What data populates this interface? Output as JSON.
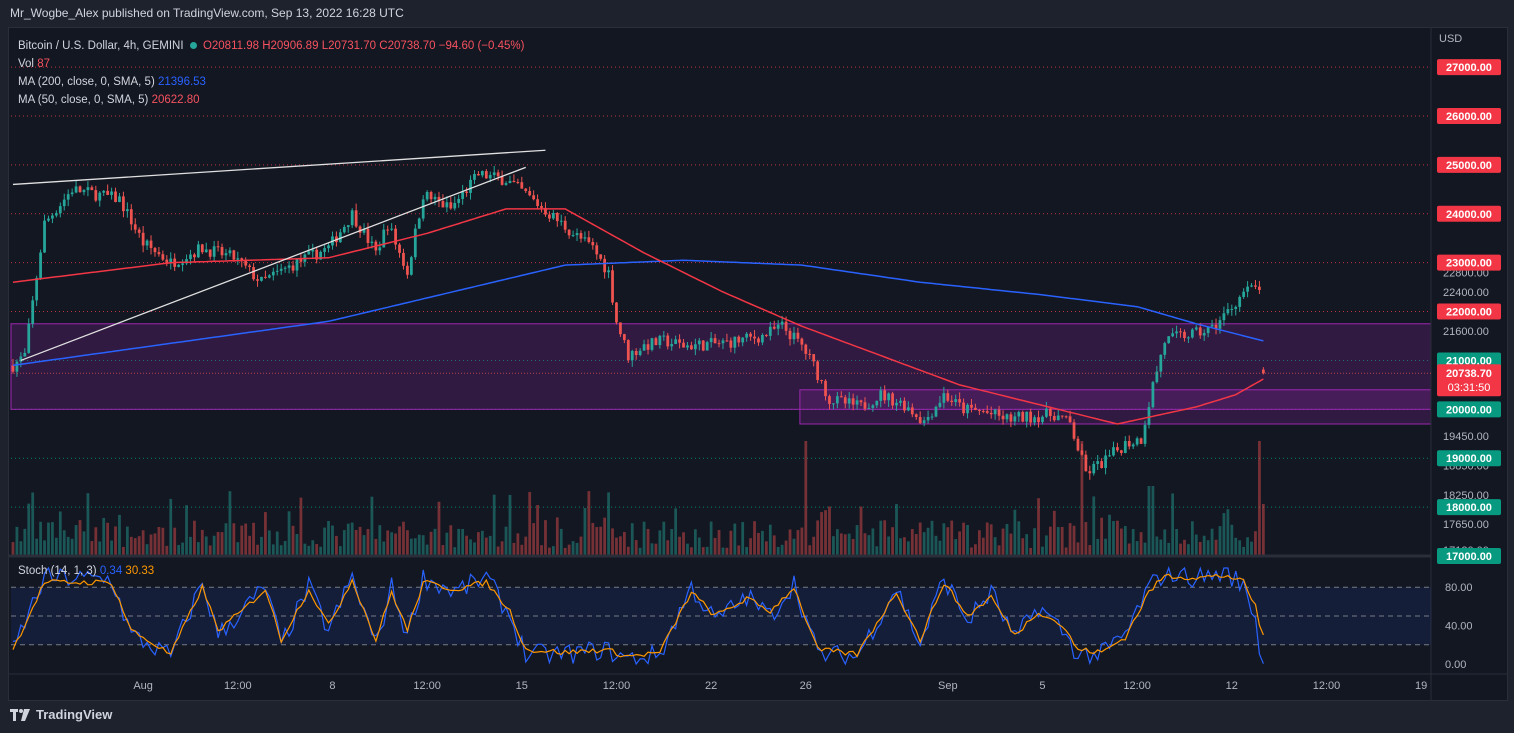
{
  "publisher": "Mr_Wogbe_Alex published on TradingView.com, Sep 13, 2022 16:28 UTC",
  "legend": {
    "symbol": "Bitcoin / U.S. Dollar, 4h, GEMINI",
    "open": "O20811.98",
    "high": "H20906.89",
    "low": "L20731.70",
    "close": "C20738.70",
    "change": "−94.60 (−0.45%)",
    "vol_label": "Vol",
    "vol_value": "87",
    "ma200_label": "MA (200, close, 0, SMA, 5)",
    "ma200_value": "21396.53",
    "ma50_label": "MA (50, close, 0, SMA, 5)",
    "ma50_value": "20622.80"
  },
  "stoch_legend": {
    "label": "Stoch (14, 1, 3)",
    "k_value": "0.34",
    "d_value": "30.33"
  },
  "footer": {
    "brand": "TradingView"
  },
  "colors": {
    "up": "#26a69a",
    "down": "#ef5350",
    "ma200": "#2962ff",
    "ma50": "#f23645",
    "zone": "#9c27b0",
    "stoch_k": "#2962ff",
    "stoch_d": "#ff9800",
    "trendline": "#e0e0e0"
  },
  "chart_data": {
    "type": "candlestick",
    "currency_label": "USD",
    "y_range": [
      17000,
      27800
    ],
    "price_ticks": [
      "22800.00",
      "22400.00",
      "21600.00",
      "19450.00",
      "18850.00",
      "18250.00",
      "17650.00",
      "17120.00"
    ],
    "price_levels": [
      {
        "value": 27000,
        "label": "27000.00",
        "color": "#f23645"
      },
      {
        "value": 26000,
        "label": "26000.00",
        "color": "#f23645"
      },
      {
        "value": 25000,
        "label": "25000.00",
        "color": "#f23645"
      },
      {
        "value": 24000,
        "label": "24000.00",
        "color": "#f23645"
      },
      {
        "value": 23000,
        "label": "23000.00",
        "color": "#f23645"
      },
      {
        "value": 22000,
        "label": "22000.00",
        "color": "#f23645"
      },
      {
        "value": 21000,
        "label": "21000.00",
        "color": "#089981"
      },
      {
        "value": 20000,
        "label": "20000.00",
        "color": "#089981"
      },
      {
        "value": 19000,
        "label": "19000.00",
        "color": "#089981"
      },
      {
        "value": 18000,
        "label": "18000.00",
        "color": "#089981"
      },
      {
        "value": 17000,
        "label": "17000.00",
        "color": "#089981"
      }
    ],
    "last_price": {
      "value": 20738.7,
      "label": "20738.70",
      "countdown": "03:31:50"
    },
    "x_labels": [
      "Aug",
      "12:00",
      "8",
      "12:00",
      "15",
      "12:00",
      "22",
      "26",
      "Sep",
      "5",
      "12:00",
      "12",
      "12:00",
      "19"
    ],
    "x_label_index": [
      33,
      57,
      81,
      105,
      129,
      153,
      177,
      201,
      237,
      261,
      285,
      309,
      333,
      357
    ],
    "keypoints": [
      [
        0,
        20900
      ],
      [
        3,
        21100
      ],
      [
        8,
        23800
      ],
      [
        15,
        24500
      ],
      [
        27,
        24300
      ],
      [
        33,
        23400
      ],
      [
        40,
        23000
      ],
      [
        48,
        23300
      ],
      [
        56,
        23100
      ],
      [
        63,
        22600
      ],
      [
        72,
        23000
      ],
      [
        80,
        23300
      ],
      [
        86,
        24000
      ],
      [
        92,
        23200
      ],
      [
        95,
        23800
      ],
      [
        100,
        22800
      ],
      [
        104,
        24400
      ],
      [
        111,
        24100
      ],
      [
        118,
        24800
      ],
      [
        125,
        24700
      ],
      [
        130,
        24400
      ],
      [
        136,
        24000
      ],
      [
        142,
        23600
      ],
      [
        147,
        23300
      ],
      [
        151,
        22800
      ],
      [
        153,
        21800
      ],
      [
        156,
        21100
      ],
      [
        160,
        21300
      ],
      [
        165,
        21400
      ],
      [
        170,
        21300
      ],
      [
        180,
        21350
      ],
      [
        190,
        21500
      ],
      [
        195,
        21700
      ],
      [
        200,
        21300
      ],
      [
        203,
        20900
      ],
      [
        207,
        20200
      ],
      [
        215,
        20050
      ],
      [
        220,
        20300
      ],
      [
        226,
        20100
      ],
      [
        231,
        19750
      ],
      [
        236,
        20300
      ],
      [
        241,
        20000
      ],
      [
        246,
        19950
      ],
      [
        252,
        19800
      ],
      [
        258,
        19850
      ],
      [
        264,
        19900
      ],
      [
        268,
        19700
      ],
      [
        272,
        18700
      ],
      [
        276,
        18900
      ],
      [
        282,
        19300
      ],
      [
        286,
        19400
      ],
      [
        289,
        20500
      ],
      [
        292,
        21400
      ],
      [
        296,
        21500
      ],
      [
        300,
        21550
      ],
      [
        304,
        21650
      ],
      [
        308,
        22000
      ],
      [
        312,
        22400
      ],
      [
        314,
        22450
      ],
      [
        316,
        22500
      ],
      [
        317,
        20750
      ]
    ],
    "ma200": [
      [
        0,
        20900
      ],
      [
        80,
        21800
      ],
      [
        140,
        22950
      ],
      [
        170,
        23050
      ],
      [
        200,
        22950
      ],
      [
        230,
        22600
      ],
      [
        260,
        22350
      ],
      [
        285,
        22100
      ],
      [
        300,
        21750
      ],
      [
        317,
        21400
      ]
    ],
    "ma50": [
      [
        0,
        22600
      ],
      [
        40,
        23000
      ],
      [
        80,
        23100
      ],
      [
        105,
        23600
      ],
      [
        125,
        24100
      ],
      [
        140,
        24100
      ],
      [
        160,
        23200
      ],
      [
        180,
        22400
      ],
      [
        200,
        21700
      ],
      [
        220,
        21100
      ],
      [
        240,
        20500
      ],
      [
        260,
        20100
      ],
      [
        280,
        19700
      ],
      [
        300,
        20050
      ],
      [
        310,
        20300
      ],
      [
        317,
        20620
      ]
    ],
    "trendline_upper": [
      [
        0,
        24600
      ],
      [
        135,
        25300
      ]
    ],
    "trendline_lower": [
      [
        2,
        21000
      ],
      [
        130,
        24950
      ]
    ],
    "zones": [
      {
        "x_from": 0,
        "x_to": 360,
        "low": 20000,
        "high": 21750
      },
      {
        "x_from": 200,
        "x_to": 360,
        "low": 19700,
        "high": 20400
      }
    ],
    "stoch": {
      "y_range": [
        0,
        100
      ],
      "ticks": [
        "80.00",
        "40.00",
        "0.00"
      ],
      "band": [
        20,
        80
      ],
      "keypoints_k": [
        [
          0,
          15
        ],
        [
          8,
          90
        ],
        [
          25,
          88
        ],
        [
          30,
          30
        ],
        [
          40,
          8
        ],
        [
          48,
          85
        ],
        [
          52,
          30
        ],
        [
          58,
          55
        ],
        [
          64,
          80
        ],
        [
          68,
          20
        ],
        [
          75,
          80
        ],
        [
          80,
          35
        ],
        [
          86,
          90
        ],
        [
          92,
          20
        ],
        [
          96,
          80
        ],
        [
          100,
          30
        ],
        [
          104,
          90
        ],
        [
          112,
          75
        ],
        [
          120,
          90
        ],
        [
          126,
          50
        ],
        [
          130,
          10
        ],
        [
          140,
          10
        ],
        [
          150,
          15
        ],
        [
          156,
          5
        ],
        [
          164,
          10
        ],
        [
          172,
          80
        ],
        [
          178,
          45
        ],
        [
          186,
          70
        ],
        [
          192,
          50
        ],
        [
          198,
          85
        ],
        [
          204,
          10
        ],
        [
          214,
          8
        ],
        [
          224,
          80
        ],
        [
          230,
          20
        ],
        [
          236,
          90
        ],
        [
          242,
          45
        ],
        [
          248,
          75
        ],
        [
          254,
          25
        ],
        [
          260,
          60
        ],
        [
          266,
          35
        ],
        [
          270,
          10
        ],
        [
          276,
          10
        ],
        [
          282,
          30
        ],
        [
          288,
          80
        ],
        [
          292,
          95
        ],
        [
          300,
          90
        ],
        [
          308,
          95
        ],
        [
          312,
          80
        ],
        [
          315,
          50
        ],
        [
          316,
          10
        ],
        [
          317,
          0.34
        ]
      ],
      "keypoints_d": [
        [
          0,
          15
        ],
        [
          8,
          85
        ],
        [
          25,
          85
        ],
        [
          30,
          35
        ],
        [
          40,
          10
        ],
        [
          48,
          80
        ],
        [
          52,
          35
        ],
        [
          58,
          55
        ],
        [
          64,
          78
        ],
        [
          68,
          25
        ],
        [
          75,
          78
        ],
        [
          80,
          40
        ],
        [
          86,
          88
        ],
        [
          92,
          25
        ],
        [
          96,
          75
        ],
        [
          100,
          35
        ],
        [
          104,
          85
        ],
        [
          112,
          78
        ],
        [
          120,
          85
        ],
        [
          126,
          55
        ],
        [
          130,
          15
        ],
        [
          140,
          12
        ],
        [
          150,
          15
        ],
        [
          156,
          8
        ],
        [
          164,
          12
        ],
        [
          172,
          75
        ],
        [
          178,
          50
        ],
        [
          186,
          68
        ],
        [
          192,
          55
        ],
        [
          198,
          80
        ],
        [
          204,
          15
        ],
        [
          214,
          10
        ],
        [
          224,
          75
        ],
        [
          230,
          25
        ],
        [
          236,
          85
        ],
        [
          242,
          50
        ],
        [
          248,
          70
        ],
        [
          254,
          30
        ],
        [
          260,
          55
        ],
        [
          266,
          40
        ],
        [
          270,
          15
        ],
        [
          276,
          12
        ],
        [
          282,
          28
        ],
        [
          288,
          75
        ],
        [
          292,
          92
        ],
        [
          300,
          90
        ],
        [
          308,
          92
        ],
        [
          312,
          85
        ],
        [
          315,
          60
        ],
        [
          316,
          40
        ],
        [
          317,
          30.33
        ]
      ]
    }
  }
}
